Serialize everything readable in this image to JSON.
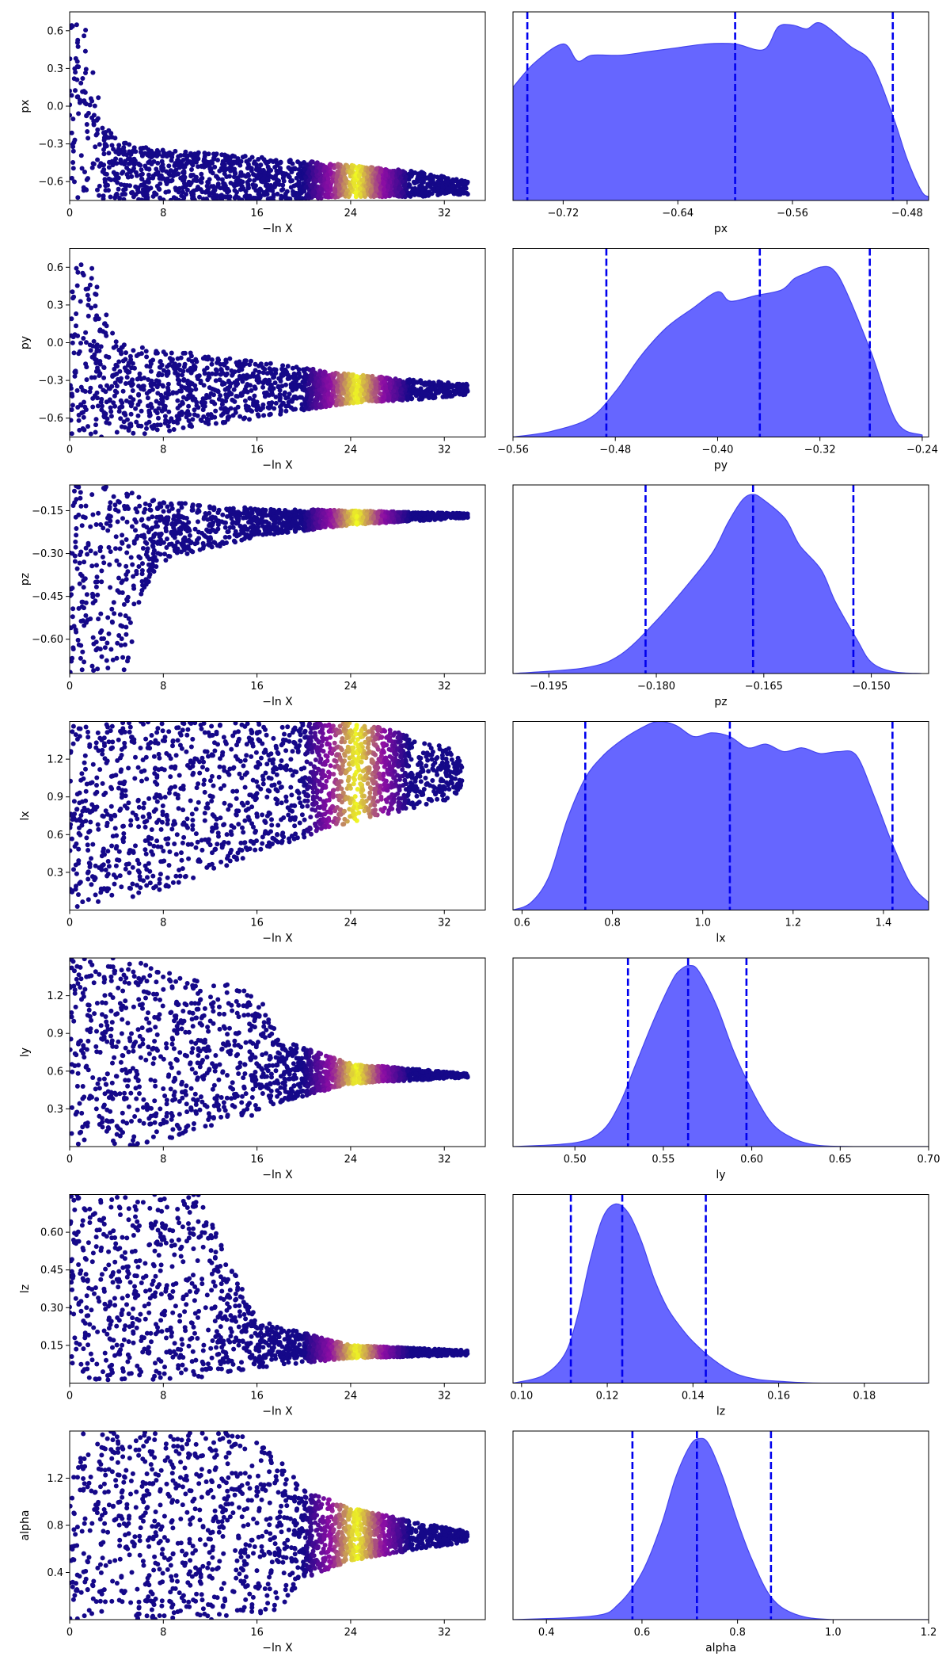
{
  "figure": {
    "colors": {
      "scatter_low": "#150889",
      "scatter_mid": "#8e0ea4",
      "scatter_hot": "#f0f921",
      "kde_fill": "#6666ff",
      "kde_line": "#4444ee",
      "quantile_line": "#0000ee"
    }
  },
  "chart_data": [
    {
      "type": "scatter",
      "param": "px",
      "xlabel": "−ln X",
      "ylabel": "px",
      "xlim": [
        0,
        35.5
      ],
      "ylim": [
        -0.75,
        0.75
      ],
      "xticks": [
        0,
        8,
        16,
        24,
        32
      ],
      "xtick_labels": [
        "0",
        "8",
        "16",
        "24",
        "32"
      ],
      "yticks": [
        0.6,
        0.3,
        0.0,
        -0.3,
        -0.6
      ],
      "ytick_labels": [
        "0.6",
        "0.3",
        "0.0",
        "−0.3",
        "−0.6"
      ],
      "envelope": [
        {
          "x": 0,
          "lo": -0.75,
          "hi": 0.75
        },
        {
          "x": 1.5,
          "lo": -0.75,
          "hi": 0.6
        },
        {
          "x": 3,
          "lo": -0.75,
          "hi": -0.15
        },
        {
          "x": 5,
          "lo": -0.75,
          "hi": -0.3
        },
        {
          "x": 8,
          "lo": -0.75,
          "hi": -0.35
        },
        {
          "x": 16,
          "lo": -0.75,
          "hi": -0.4
        },
        {
          "x": 24,
          "lo": -0.72,
          "hi": -0.47
        },
        {
          "x": 30,
          "lo": -0.72,
          "hi": -0.52
        },
        {
          "x": 34,
          "lo": -0.7,
          "hi": -0.6
        }
      ],
      "hot_region": [
        20,
        29
      ],
      "hot_peak": 24.5
    },
    {
      "type": "area",
      "param": "px",
      "xlabel": "px",
      "xlim": [
        -0.755,
        -0.465
      ],
      "xticks": [
        -0.72,
        -0.64,
        -0.56,
        -0.48
      ],
      "xtick_labels": [
        "−0.72",
        "−0.64",
        "−0.56",
        "−0.48"
      ],
      "quantiles": [
        -0.745,
        -0.6,
        -0.49
      ],
      "x": [
        -0.755,
        -0.74,
        -0.72,
        -0.71,
        -0.7,
        -0.68,
        -0.66,
        -0.64,
        -0.62,
        -0.6,
        -0.58,
        -0.57,
        -0.56,
        -0.55,
        -0.54,
        -0.52,
        -0.505,
        -0.49,
        -0.48,
        -0.47,
        -0.465
      ],
      "density": [
        0.6,
        0.73,
        0.83,
        0.74,
        0.77,
        0.77,
        0.79,
        0.81,
        0.83,
        0.83,
        0.8,
        0.92,
        0.93,
        0.91,
        0.94,
        0.82,
        0.73,
        0.45,
        0.22,
        0.05,
        0.02
      ]
    },
    {
      "type": "scatter",
      "param": "py",
      "xlabel": "−ln X",
      "ylabel": "py",
      "xlim": [
        0,
        35.5
      ],
      "ylim": [
        -0.75,
        0.75
      ],
      "xticks": [
        0,
        8,
        16,
        24,
        32
      ],
      "xtick_labels": [
        "0",
        "8",
        "16",
        "24",
        "32"
      ],
      "yticks": [
        0.6,
        0.3,
        0.0,
        -0.3,
        -0.6
      ],
      "ytick_labels": [
        "0.6",
        "0.3",
        "0.0",
        "−0.3",
        "−0.6"
      ],
      "envelope": [
        {
          "x": 0,
          "lo": -0.75,
          "hi": 0.75
        },
        {
          "x": 2,
          "lo": -0.75,
          "hi": 0.6
        },
        {
          "x": 4,
          "lo": -0.75,
          "hi": 0.0
        },
        {
          "x": 8,
          "lo": -0.72,
          "hi": -0.05
        },
        {
          "x": 16,
          "lo": -0.6,
          "hi": -0.15
        },
        {
          "x": 24,
          "lo": -0.48,
          "hi": -0.25
        },
        {
          "x": 30,
          "lo": -0.45,
          "hi": -0.3
        },
        {
          "x": 34,
          "lo": -0.42,
          "hi": -0.33
        }
      ],
      "hot_region": [
        20,
        29
      ],
      "hot_peak": 24.5
    },
    {
      "type": "area",
      "param": "py",
      "xlabel": "py",
      "xlim": [
        -0.56,
        -0.235
      ],
      "xticks": [
        -0.56,
        -0.48,
        -0.4,
        -0.32,
        -0.24
      ],
      "xtick_labels": [
        "−0.56",
        "−0.48",
        "−0.40",
        "−0.32",
        "−0.24"
      ],
      "quantiles": [
        -0.487,
        -0.367,
        -0.281
      ],
      "x": [
        -0.56,
        -0.53,
        -0.5,
        -0.48,
        -0.46,
        -0.44,
        -0.42,
        -0.4,
        -0.39,
        -0.37,
        -0.35,
        -0.34,
        -0.33,
        -0.32,
        -0.31,
        -0.3,
        -0.28,
        -0.26,
        -0.24
      ],
      "density": [
        0.0,
        0.03,
        0.1,
        0.24,
        0.43,
        0.58,
        0.68,
        0.77,
        0.72,
        0.75,
        0.78,
        0.84,
        0.87,
        0.9,
        0.89,
        0.78,
        0.45,
        0.08,
        0.01
      ]
    },
    {
      "type": "scatter",
      "param": "pz",
      "xlabel": "−ln X",
      "ylabel": "pz",
      "xlim": [
        0,
        35.5
      ],
      "ylim": [
        -0.72,
        -0.06
      ],
      "xticks": [
        0,
        8,
        16,
        24,
        32
      ],
      "xtick_labels": [
        "0",
        "8",
        "16",
        "24",
        "32"
      ],
      "yticks": [
        -0.15,
        -0.3,
        -0.45,
        -0.6
      ],
      "ytick_labels": [
        "−0.15",
        "−0.30",
        "−0.45",
        "−0.60"
      ],
      "envelope": [
        {
          "x": 0,
          "lo": -0.72,
          "hi": -0.06
        },
        {
          "x": 3,
          "lo": -0.72,
          "hi": -0.06
        },
        {
          "x": 5,
          "lo": -0.72,
          "hi": -0.08
        },
        {
          "x": 6,
          "lo": -0.45,
          "hi": -0.1
        },
        {
          "x": 8,
          "lo": -0.33,
          "hi": -0.12
        },
        {
          "x": 16,
          "lo": -0.24,
          "hi": -0.14
        },
        {
          "x": 24,
          "lo": -0.2,
          "hi": -0.15
        },
        {
          "x": 34,
          "lo": -0.175,
          "hi": -0.16
        }
      ],
      "hot_region": [
        20,
        29
      ],
      "hot_peak": 24.5
    },
    {
      "type": "area",
      "param": "pz",
      "xlabel": "pz",
      "xlim": [
        -0.2,
        -0.142
      ],
      "xticks": [
        -0.195,
        -0.18,
        -0.165,
        -0.15
      ],
      "xtick_labels": [
        "−0.195",
        "−0.180",
        "−0.165",
        "−0.150"
      ],
      "quantiles": [
        -0.1815,
        -0.1665,
        -0.1525
      ],
      "x": [
        -0.2,
        -0.19,
        -0.185,
        -0.18,
        -0.175,
        -0.172,
        -0.17,
        -0.168,
        -0.1665,
        -0.165,
        -0.162,
        -0.16,
        -0.157,
        -0.155,
        -0.152,
        -0.15,
        -0.147,
        -0.143
      ],
      "density": [
        0.0,
        0.03,
        0.1,
        0.28,
        0.5,
        0.65,
        0.8,
        0.92,
        0.95,
        0.92,
        0.82,
        0.68,
        0.55,
        0.38,
        0.18,
        0.06,
        0.01,
        0.0
      ]
    },
    {
      "type": "scatter",
      "param": "lx",
      "xlabel": "−ln X",
      "ylabel": "lx",
      "xlim": [
        0,
        35.5
      ],
      "ylim": [
        0.0,
        1.5
      ],
      "xticks": [
        0,
        8,
        16,
        24,
        32
      ],
      "xtick_labels": [
        "0",
        "8",
        "16",
        "24",
        "32"
      ],
      "yticks": [
        1.2,
        0.9,
        0.6,
        0.3
      ],
      "ytick_labels": [
        "1.2",
        "0.9",
        "0.6",
        "0.3"
      ],
      "envelope": [
        {
          "x": 0,
          "lo": 0.0,
          "hi": 1.5
        },
        {
          "x": 8,
          "lo": 0.15,
          "hi": 1.5
        },
        {
          "x": 16,
          "lo": 0.45,
          "hi": 1.5
        },
        {
          "x": 24,
          "lo": 0.7,
          "hi": 1.5
        },
        {
          "x": 28,
          "lo": 0.78,
          "hi": 1.42
        },
        {
          "x": 32,
          "lo": 0.85,
          "hi": 1.32
        },
        {
          "x": 33.5,
          "lo": 0.95,
          "hi": 1.2
        }
      ],
      "hot_region": [
        20,
        29
      ],
      "hot_peak": 24.5
    },
    {
      "type": "area",
      "param": "lx",
      "xlabel": "lx",
      "xlim": [
        0.58,
        1.5
      ],
      "xticks": [
        0.6,
        0.8,
        1.0,
        1.2,
        1.4
      ],
      "xtick_labels": [
        "0.6",
        "0.8",
        "1.0",
        "1.2",
        "1.4"
      ],
      "quantiles": [
        0.74,
        1.06,
        1.42
      ],
      "x": [
        0.58,
        0.62,
        0.66,
        0.7,
        0.74,
        0.78,
        0.82,
        0.86,
        0.9,
        0.94,
        0.98,
        1.02,
        1.06,
        1.1,
        1.14,
        1.18,
        1.22,
        1.26,
        1.3,
        1.34,
        1.38,
        1.42,
        1.46,
        1.5
      ],
      "density": [
        0.0,
        0.04,
        0.18,
        0.48,
        0.7,
        0.82,
        0.9,
        0.96,
        1.0,
        0.98,
        0.92,
        0.94,
        0.92,
        0.86,
        0.88,
        0.84,
        0.86,
        0.83,
        0.84,
        0.82,
        0.6,
        0.35,
        0.14,
        0.04
      ]
    },
    {
      "type": "scatter",
      "param": "ly",
      "xlabel": "−ln X",
      "ylabel": "ly",
      "xlim": [
        0,
        35.5
      ],
      "ylim": [
        0.0,
        1.5
      ],
      "xticks": [
        0,
        8,
        16,
        24,
        32
      ],
      "xtick_labels": [
        "0",
        "8",
        "16",
        "24",
        "32"
      ],
      "yticks": [
        1.2,
        0.9,
        0.6,
        0.3
      ],
      "ytick_labels": [
        "1.2",
        "0.9",
        "0.6",
        "0.3"
      ],
      "envelope": [
        {
          "x": 0,
          "lo": 0.0,
          "hi": 1.5
        },
        {
          "x": 6,
          "lo": 0.0,
          "hi": 1.5
        },
        {
          "x": 10,
          "lo": 0.1,
          "hi": 1.35
        },
        {
          "x": 16,
          "lo": 0.25,
          "hi": 1.25
        },
        {
          "x": 18,
          "lo": 0.35,
          "hi": 0.85
        },
        {
          "x": 24,
          "lo": 0.5,
          "hi": 0.66
        },
        {
          "x": 34,
          "lo": 0.55,
          "hi": 0.58
        }
      ],
      "hot_region": [
        20,
        29
      ],
      "hot_peak": 24.5
    },
    {
      "type": "area",
      "param": "ly",
      "xlabel": "ly",
      "xlim": [
        0.465,
        0.7
      ],
      "xticks": [
        0.5,
        0.55,
        0.6,
        0.65,
        0.7
      ],
      "xtick_labels": [
        "0.50",
        "0.55",
        "0.60",
        "0.65",
        "0.70"
      ],
      "quantiles": [
        0.53,
        0.564,
        0.597
      ],
      "x": [
        0.465,
        0.5,
        0.515,
        0.525,
        0.535,
        0.545,
        0.555,
        0.56,
        0.565,
        0.57,
        0.58,
        0.59,
        0.6,
        0.61,
        0.62,
        0.635,
        0.66,
        0.7
      ],
      "density": [
        0.0,
        0.02,
        0.08,
        0.22,
        0.45,
        0.68,
        0.88,
        0.94,
        0.96,
        0.93,
        0.75,
        0.5,
        0.3,
        0.14,
        0.06,
        0.01,
        0.0,
        0.0
      ]
    },
    {
      "type": "scatter",
      "param": "lz",
      "xlabel": "−ln X",
      "ylabel": "lz",
      "xlim": [
        0,
        35.5
      ],
      "ylim": [
        0.0,
        0.75
      ],
      "xticks": [
        0,
        8,
        16,
        24,
        32
      ],
      "xtick_labels": [
        "0",
        "8",
        "16",
        "24",
        "32"
      ],
      "yticks": [
        0.6,
        0.45,
        0.3,
        0.15
      ],
      "ytick_labels": [
        "0.60",
        "0.45",
        "0.30",
        "0.15"
      ],
      "envelope": [
        {
          "x": 0,
          "lo": 0.0,
          "hi": 0.75
        },
        {
          "x": 11,
          "lo": 0.02,
          "hi": 0.75
        },
        {
          "x": 13,
          "lo": 0.04,
          "hi": 0.55
        },
        {
          "x": 16,
          "lo": 0.06,
          "hi": 0.25
        },
        {
          "x": 24,
          "lo": 0.1,
          "hi": 0.15
        },
        {
          "x": 34,
          "lo": 0.11,
          "hi": 0.13
        }
      ],
      "hot_region": [
        20,
        29
      ],
      "hot_peak": 24.5
    },
    {
      "type": "area",
      "param": "lz",
      "xlabel": "lz",
      "xlim": [
        0.098,
        0.195
      ],
      "xticks": [
        0.1,
        0.12,
        0.14,
        0.16,
        0.18
      ],
      "xtick_labels": [
        "0.10",
        "0.12",
        "0.14",
        "0.16",
        "0.18"
      ],
      "quantiles": [
        0.1115,
        0.1235,
        0.143
      ],
      "x": [
        0.098,
        0.105,
        0.11,
        0.113,
        0.116,
        0.119,
        0.122,
        0.125,
        0.128,
        0.131,
        0.134,
        0.137,
        0.14,
        0.145,
        0.15,
        0.155,
        0.16,
        0.17,
        0.195
      ],
      "density": [
        0.0,
        0.04,
        0.15,
        0.35,
        0.65,
        0.88,
        0.95,
        0.9,
        0.75,
        0.55,
        0.4,
        0.3,
        0.22,
        0.12,
        0.05,
        0.02,
        0.01,
        0.0,
        0.0
      ]
    },
    {
      "type": "scatter",
      "param": "alpha",
      "xlabel": "−ln X",
      "ylabel": "alpha",
      "xlim": [
        0,
        35.5
      ],
      "ylim": [
        0.0,
        1.6
      ],
      "xticks": [
        0,
        8,
        16,
        24,
        32
      ],
      "xtick_labels": [
        "0",
        "8",
        "16",
        "24",
        "32"
      ],
      "yticks": [
        1.2,
        0.8,
        0.4
      ],
      "ytick_labels": [
        "1.2",
        "0.8",
        "0.4"
      ],
      "envelope": [
        {
          "x": 0,
          "lo": 0.0,
          "hi": 1.6
        },
        {
          "x": 15,
          "lo": 0.0,
          "hi": 1.6
        },
        {
          "x": 18,
          "lo": 0.1,
          "hi": 1.35
        },
        {
          "x": 20,
          "lo": 0.35,
          "hi": 1.1
        },
        {
          "x": 24,
          "lo": 0.5,
          "hi": 0.95
        },
        {
          "x": 30,
          "lo": 0.6,
          "hi": 0.82
        },
        {
          "x": 34,
          "lo": 0.66,
          "hi": 0.75
        }
      ],
      "hot_region": [
        20,
        29
      ],
      "hot_peak": 24.5
    },
    {
      "type": "area",
      "param": "alpha",
      "xlabel": "alpha",
      "xlim": [
        0.33,
        1.2
      ],
      "xticks": [
        0.4,
        0.6,
        0.8,
        1.0,
        1.2
      ],
      "xtick_labels": [
        "0.4",
        "0.6",
        "0.8",
        "1.0",
        "1.2"
      ],
      "quantiles": [
        0.58,
        0.715,
        0.87
      ],
      "x": [
        0.33,
        0.5,
        0.55,
        0.6,
        0.64,
        0.67,
        0.7,
        0.72,
        0.74,
        0.77,
        0.8,
        0.83,
        0.87,
        0.92,
        1.0,
        1.2
      ],
      "density": [
        0.0,
        0.02,
        0.08,
        0.25,
        0.5,
        0.75,
        0.92,
        0.96,
        0.93,
        0.75,
        0.52,
        0.32,
        0.12,
        0.03,
        0.0,
        0.0
      ]
    }
  ]
}
